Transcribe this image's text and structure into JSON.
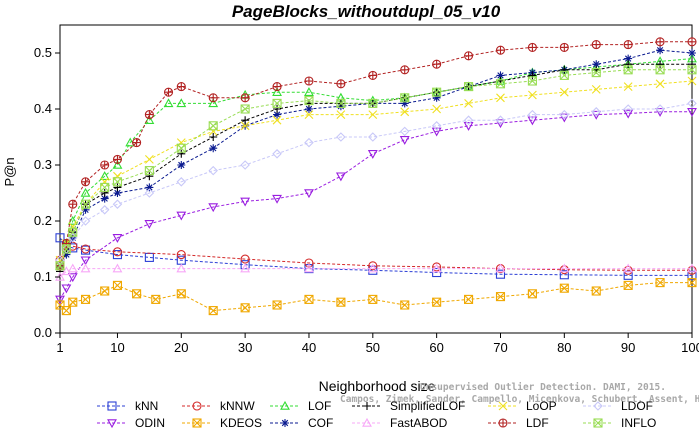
{
  "chart_data": {
    "type": "line",
    "title": "PageBlocks_withoutdupl_05_v10",
    "xlabel": "Neighborhood size",
    "ylabel": "P@n",
    "xlim": [
      1,
      100
    ],
    "ylim": [
      0,
      0.55
    ],
    "x_ticks": [
      "1",
      "10",
      "20",
      "30",
      "40",
      "50",
      "60",
      "70",
      "80",
      "90",
      "100"
    ],
    "y_ticks": [
      "0.0",
      "0.1",
      "0.2",
      "0.3",
      "0.4",
      "0.5"
    ],
    "legend_position": "bottom",
    "credit": [
      "Campos, Zimek, Sander, Campello, Micenkova, Schubert, Assent, Houle",
      "Unsupervised Outlier Detection. DAMI, 2015."
    ],
    "series": [
      {
        "name": "kNN",
        "color": "#2b3fd6",
        "marker": "square",
        "x": [
          1,
          2,
          3,
          5,
          10,
          15,
          20,
          30,
          40,
          50,
          60,
          70,
          80,
          90,
          100
        ],
        "y": [
          0.17,
          0.155,
          0.152,
          0.148,
          0.14,
          0.135,
          0.13,
          0.122,
          0.115,
          0.112,
          0.108,
          0.105,
          0.104,
          0.103,
          0.103
        ]
      },
      {
        "name": "ODIN",
        "color": "#9a1ee0",
        "marker": "triangle-down",
        "x": [
          1,
          2,
          3,
          5,
          10,
          15,
          20,
          25,
          30,
          35,
          40,
          45,
          50,
          55,
          60,
          65,
          70,
          75,
          80,
          85,
          90,
          95,
          100
        ],
        "y": [
          0.06,
          0.08,
          0.1,
          0.13,
          0.17,
          0.195,
          0.21,
          0.225,
          0.235,
          0.24,
          0.25,
          0.28,
          0.32,
          0.345,
          0.36,
          0.37,
          0.375,
          0.38,
          0.385,
          0.39,
          0.392,
          0.395,
          0.395
        ]
      },
      {
        "name": "kNNW",
        "color": "#d42a2a",
        "marker": "circle",
        "x": [
          1,
          2,
          3,
          5,
          10,
          20,
          30,
          40,
          50,
          60,
          70,
          80,
          90,
          100
        ],
        "y": [
          0.13,
          0.15,
          0.155,
          0.15,
          0.145,
          0.14,
          0.132,
          0.125,
          0.12,
          0.118,
          0.115,
          0.113,
          0.112,
          0.112
        ]
      },
      {
        "name": "KDEOS",
        "color": "#f0a800",
        "marker": "square-x",
        "x": [
          1,
          2,
          3,
          5,
          8,
          10,
          13,
          16,
          20,
          25,
          30,
          35,
          40,
          45,
          50,
          55,
          60,
          65,
          70,
          75,
          80,
          85,
          90,
          95,
          100
        ],
        "y": [
          0.05,
          0.04,
          0.055,
          0.06,
          0.075,
          0.085,
          0.07,
          0.06,
          0.07,
          0.04,
          0.045,
          0.05,
          0.06,
          0.055,
          0.06,
          0.05,
          0.055,
          0.06,
          0.065,
          0.07,
          0.08,
          0.075,
          0.085,
          0.09,
          0.09
        ]
      },
      {
        "name": "LOF",
        "color": "#33dd33",
        "marker": "triangle",
        "x": [
          1,
          2,
          3,
          5,
          8,
          10,
          12,
          15,
          18,
          20,
          25,
          30,
          35,
          40,
          45,
          50,
          55,
          60,
          65,
          70,
          75,
          80,
          85,
          90,
          95,
          100
        ],
        "y": [
          0.12,
          0.16,
          0.2,
          0.25,
          0.28,
          0.3,
          0.34,
          0.38,
          0.41,
          0.41,
          0.41,
          0.425,
          0.43,
          0.43,
          0.42,
          0.415,
          0.42,
          0.43,
          0.44,
          0.45,
          0.465,
          0.47,
          0.475,
          0.48,
          0.485,
          0.49
        ]
      },
      {
        "name": "COF",
        "color": "#0a1a90",
        "marker": "star",
        "x": [
          1,
          2,
          3,
          5,
          8,
          10,
          15,
          20,
          25,
          30,
          35,
          40,
          45,
          50,
          55,
          60,
          65,
          70,
          75,
          80,
          85,
          90,
          95,
          100
        ],
        "y": [
          0.12,
          0.14,
          0.17,
          0.22,
          0.24,
          0.25,
          0.26,
          0.3,
          0.33,
          0.37,
          0.39,
          0.4,
          0.405,
          0.41,
          0.41,
          0.42,
          0.44,
          0.46,
          0.465,
          0.47,
          0.48,
          0.49,
          0.505,
          0.5
        ]
      },
      {
        "name": "SimplifiedLOF",
        "color": "#000000",
        "marker": "plus",
        "x": [
          1,
          2,
          3,
          5,
          8,
          10,
          15,
          20,
          25,
          30,
          35,
          40,
          45,
          50,
          55,
          60,
          65,
          70,
          75,
          80,
          85,
          90,
          95,
          100
        ],
        "y": [
          0.11,
          0.15,
          0.18,
          0.23,
          0.25,
          0.26,
          0.28,
          0.32,
          0.35,
          0.38,
          0.4,
          0.41,
          0.41,
          0.41,
          0.42,
          0.43,
          0.44,
          0.45,
          0.46,
          0.47,
          0.47,
          0.48,
          0.48,
          0.48
        ]
      },
      {
        "name": "FastABOD",
        "color": "#f7a8f7",
        "marker": "triangle",
        "x": [
          1,
          2,
          3,
          5,
          10,
          20,
          30,
          40,
          50,
          60,
          70,
          80,
          90,
          100
        ],
        "y": [
          0.1,
          0.11,
          0.115,
          0.115,
          0.115,
          0.115,
          0.115,
          0.115,
          0.115,
          0.115,
          0.115,
          0.115,
          0.115,
          0.115
        ]
      },
      {
        "name": "LoOP",
        "color": "#f0e020",
        "marker": "x",
        "x": [
          1,
          2,
          3,
          5,
          8,
          10,
          15,
          20,
          25,
          30,
          35,
          40,
          45,
          50,
          55,
          60,
          65,
          70,
          75,
          80,
          85,
          90,
          95,
          100
        ],
        "y": [
          0.13,
          0.16,
          0.19,
          0.23,
          0.27,
          0.28,
          0.31,
          0.34,
          0.36,
          0.37,
          0.38,
          0.39,
          0.39,
          0.39,
          0.395,
          0.4,
          0.41,
          0.42,
          0.425,
          0.43,
          0.435,
          0.44,
          0.445,
          0.45
        ]
      },
      {
        "name": "LDF",
        "color": "#b22222",
        "marker": "circle-plus",
        "x": [
          1,
          2,
          3,
          5,
          8,
          10,
          13,
          15,
          18,
          20,
          25,
          30,
          35,
          40,
          45,
          50,
          55,
          60,
          65,
          70,
          75,
          80,
          85,
          90,
          95,
          100
        ],
        "y": [
          0.12,
          0.16,
          0.23,
          0.27,
          0.3,
          0.31,
          0.34,
          0.39,
          0.43,
          0.44,
          0.42,
          0.42,
          0.44,
          0.45,
          0.445,
          0.46,
          0.47,
          0.48,
          0.495,
          0.505,
          0.51,
          0.51,
          0.515,
          0.515,
          0.52,
          0.52
        ]
      },
      {
        "name": "LDOF",
        "color": "#c8c8f8",
        "marker": "diamond",
        "x": [
          1,
          2,
          3,
          5,
          8,
          10,
          15,
          20,
          25,
          30,
          35,
          40,
          45,
          50,
          55,
          60,
          65,
          70,
          75,
          80,
          85,
          90,
          95,
          100
        ],
        "y": [
          0.13,
          0.15,
          0.17,
          0.2,
          0.22,
          0.23,
          0.25,
          0.27,
          0.29,
          0.3,
          0.32,
          0.34,
          0.35,
          0.35,
          0.36,
          0.37,
          0.38,
          0.38,
          0.39,
          0.39,
          0.395,
          0.4,
          0.4,
          0.41
        ]
      },
      {
        "name": "INFLO",
        "color": "#99dd55",
        "marker": "square-x",
        "x": [
          1,
          2,
          3,
          5,
          8,
          10,
          15,
          20,
          25,
          30,
          35,
          40,
          45,
          50,
          55,
          60,
          65,
          70,
          75,
          80,
          85,
          90,
          95,
          100
        ],
        "y": [
          0.12,
          0.15,
          0.18,
          0.23,
          0.26,
          0.27,
          0.29,
          0.33,
          0.37,
          0.4,
          0.41,
          0.415,
          0.41,
          0.41,
          0.42,
          0.43,
          0.44,
          0.445,
          0.45,
          0.46,
          0.465,
          0.47,
          0.47,
          0.47
        ]
      }
    ],
    "legend_rows": [
      [
        "kNN",
        "kNNW",
        "LOF",
        "SimplifiedLOF",
        "LoOP",
        "LDOF"
      ],
      [
        "ODIN",
        "KDEOS",
        "COF",
        "FastABOD",
        "LDF",
        "INFLO"
      ]
    ]
  }
}
